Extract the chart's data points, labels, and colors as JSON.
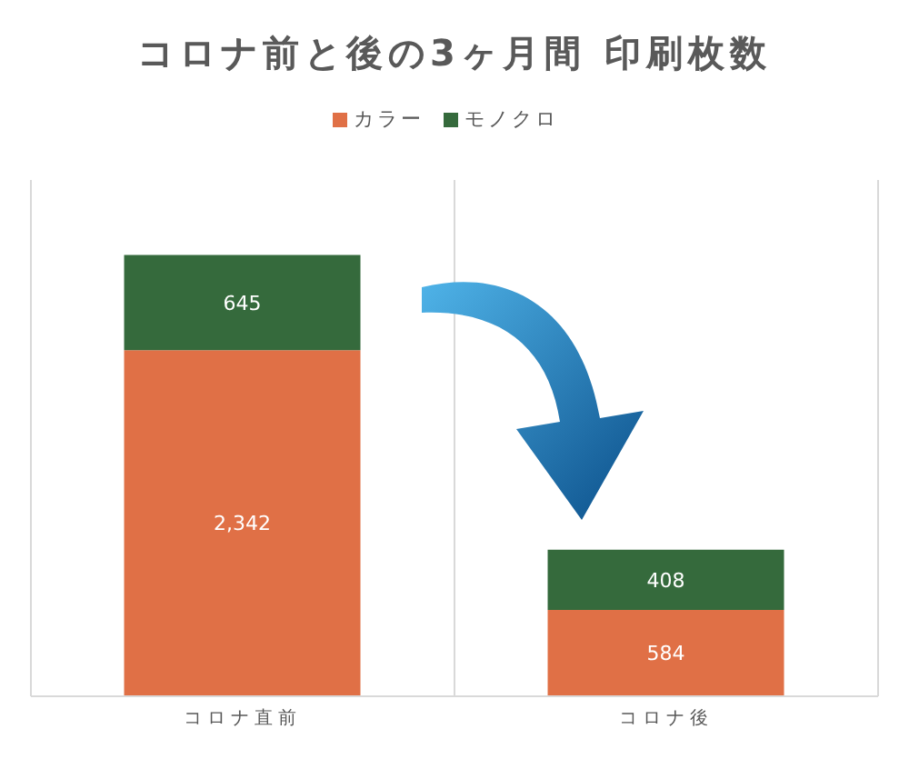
{
  "chart_data": {
    "type": "bar",
    "title": "コロナ前と後の3ヶ月間 印刷枚数",
    "categories": [
      "コロナ直前",
      "コロナ後"
    ],
    "series": [
      {
        "name": "カラー",
        "color": "#e07046",
        "values": [
          2342,
          584
        ],
        "value_labels": [
          "2,342",
          "584"
        ]
      },
      {
        "name": "モノクロ",
        "color": "#356a3c",
        "values": [
          645,
          408
        ],
        "value_labels": [
          "645",
          "408"
        ]
      }
    ],
    "stacked": true,
    "legend": "top",
    "grid": "x"
  }
}
